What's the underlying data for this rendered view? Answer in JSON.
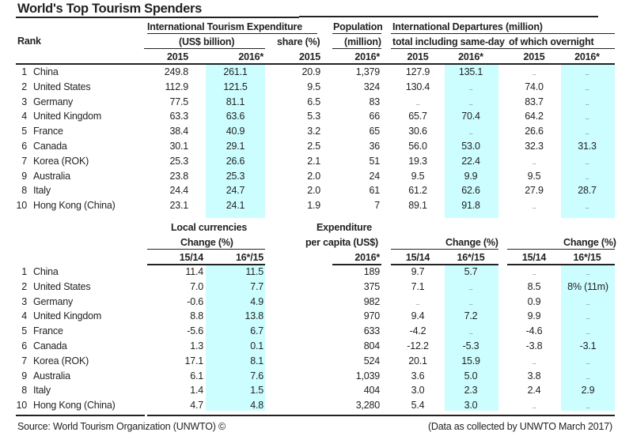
{
  "title": "World's Top Tourism Spenders",
  "top_headers": {
    "rank": "Rank",
    "expenditure_group": "International Tourism Expenditure",
    "expenditure_unit": "(US$ billion)",
    "share": "share (%)",
    "population": "Population",
    "population_unit": "(million)",
    "departures_group": "International Departures (million)",
    "departures_total": "total including same-day",
    "departures_overnight": "of which overnight",
    "y2015": "2015",
    "y2016": "2016*"
  },
  "top_rows": [
    {
      "rank": "1",
      "country": "China",
      "exp2015": "249.8",
      "exp2016": "261.1",
      "share2015": "20.9",
      "pop2016": "1,379",
      "dep2015": "127.9",
      "dep2016": "135.1",
      "ovn2015": "..",
      "ovn2016": ".."
    },
    {
      "rank": "2",
      "country": "United States",
      "exp2015": "112.9",
      "exp2016": "121.5",
      "share2015": "9.5",
      "pop2016": "324",
      "dep2015": "130.4",
      "dep2016": "..",
      "ovn2015": "74.0",
      "ovn2016": ".."
    },
    {
      "rank": "3",
      "country": "Germany",
      "exp2015": "77.5",
      "exp2016": "81.1",
      "share2015": "6.5",
      "pop2016": "83",
      "dep2015": "..",
      "dep2016": "..",
      "ovn2015": "83.7",
      "ovn2016": ".."
    },
    {
      "rank": "4",
      "country": "United Kingdom",
      "exp2015": "63.3",
      "exp2016": "63.6",
      "share2015": "5.3",
      "pop2016": "66",
      "dep2015": "65.7",
      "dep2016": "70.4",
      "ovn2015": "64.2",
      "ovn2016": ".."
    },
    {
      "rank": "5",
      "country": "France",
      "exp2015": "38.4",
      "exp2016": "40.9",
      "share2015": "3.2",
      "pop2016": "65",
      "dep2015": "30.6",
      "dep2016": "..",
      "ovn2015": "26.6",
      "ovn2016": ".."
    },
    {
      "rank": "6",
      "country": "Canada",
      "exp2015": "30.1",
      "exp2016": "29.1",
      "share2015": "2.5",
      "pop2016": "36",
      "dep2015": "56.0",
      "dep2016": "53.0",
      "ovn2015": "32.3",
      "ovn2016": "31.3"
    },
    {
      "rank": "7",
      "country": "Korea (ROK)",
      "exp2015": "25.3",
      "exp2016": "26.6",
      "share2015": "2.1",
      "pop2016": "51",
      "dep2015": "19.3",
      "dep2016": "22.4",
      "ovn2015": "..",
      "ovn2016": ".."
    },
    {
      "rank": "9",
      "country": "Australia",
      "exp2015": "23.8",
      "exp2016": "25.3",
      "share2015": "2.0",
      "pop2016": "24",
      "dep2015": "9.5",
      "dep2016": "9.9",
      "ovn2015": "9.5",
      "ovn2016": ".."
    },
    {
      "rank": "8",
      "country": "Italy",
      "exp2015": "24.4",
      "exp2016": "24.7",
      "share2015": "2.0",
      "pop2016": "61",
      "dep2015": "61.2",
      "dep2016": "62.6",
      "ovn2015": "27.9",
      "ovn2016": "28.7"
    },
    {
      "rank": "10",
      "country": "Hong Kong (China)",
      "exp2015": "23.1",
      "exp2016": "24.1",
      "share2015": "1.9",
      "pop2016": "7",
      "dep2015": "89.1",
      "dep2016": "91.8",
      "ovn2015": "..",
      "ovn2016": ".."
    }
  ],
  "bottom_headers": {
    "local_currencies": "Local currencies",
    "change_pct": "Change (%)",
    "expenditure": "Expenditure",
    "per_capita": "per capita (US$)",
    "y2016": "2016*",
    "p1514": "15/14",
    "p1615": "16*/15"
  },
  "bottom_rows": [
    {
      "rank": "1",
      "country": "China",
      "lc1514": "11.4",
      "lc1615": "11.5",
      "pc2016": "189",
      "dt1514": "9.7",
      "dt1615": "5.7",
      "ov1514": "..",
      "ov1615": ".."
    },
    {
      "rank": "2",
      "country": "United States",
      "lc1514": "7.0",
      "lc1615": "7.7",
      "pc2016": "375",
      "dt1514": "7.1",
      "dt1615": "..",
      "ov1514": "8.5",
      "ov1615": "8% (11m)"
    },
    {
      "rank": "3",
      "country": "Germany",
      "lc1514": "-0.6",
      "lc1615": "4.9",
      "pc2016": "982",
      "dt1514": "..",
      "dt1615": "..",
      "ov1514": "0.9",
      "ov1615": ".."
    },
    {
      "rank": "4",
      "country": "United Kingdom",
      "lc1514": "8.8",
      "lc1615": "13.8",
      "pc2016": "970",
      "dt1514": "9.4",
      "dt1615": "7.2",
      "ov1514": "9.9",
      "ov1615": ".."
    },
    {
      "rank": "5",
      "country": "France",
      "lc1514": "-5.6",
      "lc1615": "6.7",
      "pc2016": "633",
      "dt1514": "-4.2",
      "dt1615": "..",
      "ov1514": "-4.6",
      "ov1615": ".."
    },
    {
      "rank": "6",
      "country": "Canada",
      "lc1514": "1.3",
      "lc1615": "0.1",
      "pc2016": "804",
      "dt1514": "-12.2",
      "dt1615": "-5.3",
      "ov1514": "-3.8",
      "ov1615": "-3.1"
    },
    {
      "rank": "7",
      "country": "Korea (ROK)",
      "lc1514": "17.1",
      "lc1615": "8.1",
      "pc2016": "524",
      "dt1514": "20.1",
      "dt1615": "15.9",
      "ov1514": "..",
      "ov1615": ".."
    },
    {
      "rank": "9",
      "country": "Australia",
      "lc1514": "6.1",
      "lc1615": "7.6",
      "pc2016": "1,039",
      "dt1514": "3.6",
      "dt1615": "5.0",
      "ov1514": "3.8",
      "ov1615": ".."
    },
    {
      "rank": "8",
      "country": "Italy",
      "lc1514": "1.4",
      "lc1615": "1.5",
      "pc2016": "404",
      "dt1514": "3.0",
      "dt1615": "2.3",
      "ov1514": "2.4",
      "ov1615": "2.9"
    },
    {
      "rank": "10",
      "country": "Hong Kong (China)",
      "lc1514": "4.7",
      "lc1615": "4.8",
      "pc2016": "3,280",
      "dt1514": "5.4",
      "dt1615": "3.0",
      "ov1514": "..",
      "ov1615": ".."
    }
  ],
  "footer": {
    "source": "Source: World Tourism Organization (UNWTO) ©",
    "note": "(Data as collected by UNWTO March 2017)"
  },
  "colors": {
    "highlight": "#ccfdff",
    "text": "#222222"
  }
}
